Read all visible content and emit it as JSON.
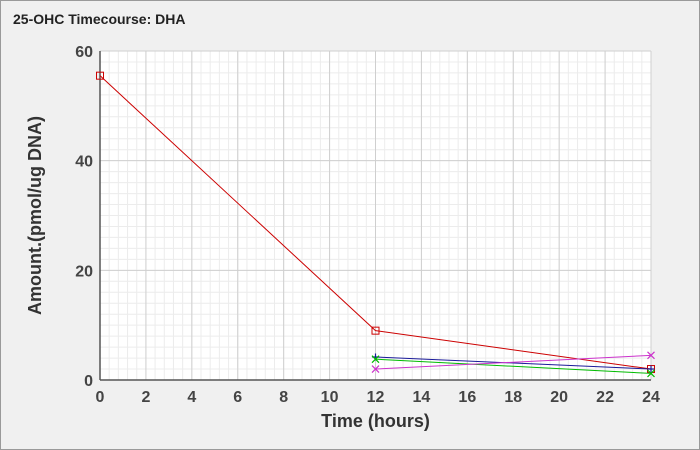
{
  "chart_data": {
    "type": "line",
    "title": "25-OHC Timecourse: DHA",
    "xlabel": "Time (hours)",
    "ylabel": "Amount.(pmol/ug DNA)",
    "xlim": [
      0,
      24
    ],
    "ylim": [
      0,
      60
    ],
    "x_ticks": [
      "0",
      "2",
      "4",
      "6",
      "8",
      "10",
      "12",
      "14",
      "16",
      "18",
      "20",
      "22",
      "24"
    ],
    "y_ticks": [
      "0",
      "20",
      "40",
      "60"
    ],
    "grid": true,
    "series": [
      {
        "color": "#cc0000",
        "marker": "square",
        "points": [
          [
            0,
            55.5
          ],
          [
            12,
            9.0
          ],
          [
            24,
            2.0
          ]
        ]
      },
      {
        "color": "#1a1a99",
        "marker": "plus",
        "points": [
          [
            12,
            4.2
          ],
          [
            24,
            2.0
          ]
        ]
      },
      {
        "color": "#00bb00",
        "marker": "x",
        "points": [
          [
            12,
            3.8
          ],
          [
            24,
            1.2
          ]
        ]
      },
      {
        "color": "#cc33cc",
        "marker": "x",
        "points": [
          [
            12,
            2.0
          ],
          [
            24,
            4.5
          ]
        ]
      }
    ]
  }
}
